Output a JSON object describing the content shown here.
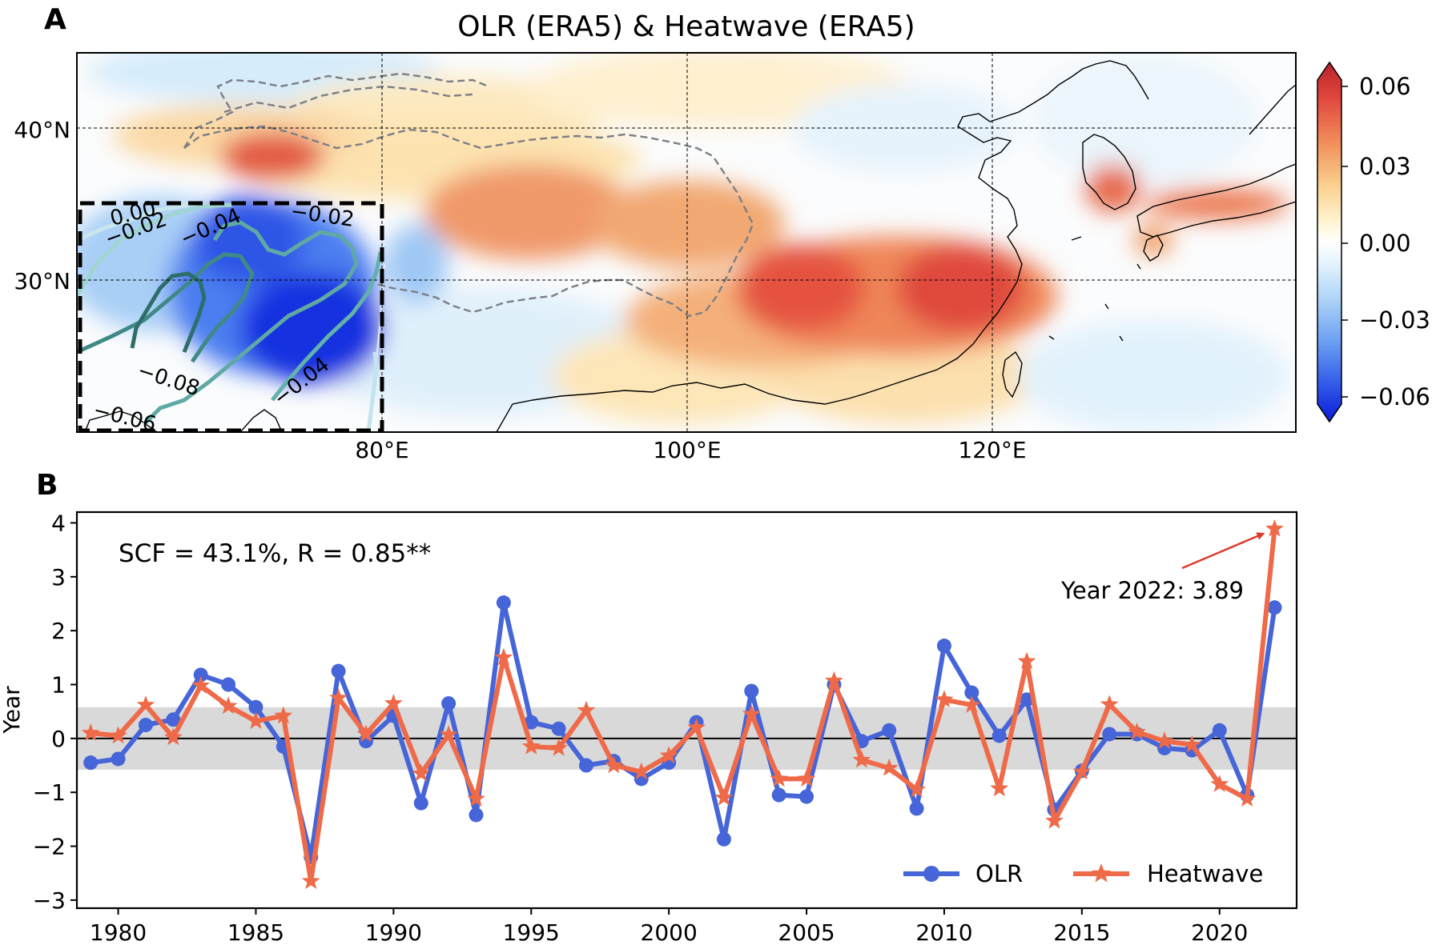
{
  "panel_a": {
    "label": "A",
    "title": "OLR (ERA5) & Heatwave (ERA5)",
    "lat_labels": [
      "40°N",
      "30°N"
    ],
    "lon_labels": [
      "80°E",
      "100°E",
      "120°E"
    ],
    "colorbar": {
      "ticks": [
        "0.06",
        "0.03",
        "0.00",
        "−0.03",
        "−0.06"
      ],
      "range": [
        -0.066,
        0.066
      ],
      "colors": [
        "#0a1bd6",
        "#1e43e6",
        "#3d6ded",
        "#5d93f0",
        "#86b6f4",
        "#aed3f8",
        "#d3ebfb",
        "#eef8fd",
        "#fff3cf",
        "#fde0a3",
        "#fac27c",
        "#f5a064",
        "#ee7c52",
        "#e65a44",
        "#d63a36",
        "#b8232b"
      ]
    },
    "contour_labels": [
      "0.00",
      "−0.02",
      "−0.04",
      "−0.02",
      "−0.08",
      "−0.04",
      "−0.06"
    ]
  },
  "panel_b": {
    "label": "B",
    "ylabel": "Year",
    "annotation": "SCF = 43.1%, R = 0.85**",
    "callout": "Year 2022: 3.89",
    "legend": [
      "OLR",
      "Heatwave"
    ],
    "colors": {
      "olr": "#4565d8",
      "heatwave": "#ee6a48",
      "arrow": "#e03a2c",
      "band": "#d9d9d9"
    }
  },
  "chart_data": {
    "type": "line",
    "x": [
      1979,
      1980,
      1981,
      1982,
      1983,
      1984,
      1985,
      1986,
      1987,
      1988,
      1989,
      1990,
      1991,
      1992,
      1993,
      1994,
      1995,
      1996,
      1997,
      1998,
      1999,
      2000,
      2001,
      2002,
      2003,
      2004,
      2005,
      2006,
      2007,
      2008,
      2009,
      2010,
      2011,
      2012,
      2013,
      2014,
      2015,
      2016,
      2017,
      2018,
      2019,
      2020,
      2021,
      2022
    ],
    "series": [
      {
        "name": "OLR",
        "values": [
          -0.45,
          -0.38,
          0.25,
          0.35,
          1.18,
          1.0,
          0.58,
          -0.15,
          -2.2,
          1.25,
          -0.05,
          0.42,
          -1.2,
          0.65,
          -1.42,
          2.52,
          0.3,
          0.18,
          -0.5,
          -0.42,
          -0.75,
          -0.45,
          0.3,
          -1.87,
          0.88,
          -1.05,
          -1.08,
          1.0,
          -0.05,
          0.15,
          -1.3,
          1.72,
          0.85,
          0.05,
          0.72,
          -1.32,
          -0.6,
          0.08,
          0.08,
          -0.18,
          -0.22,
          0.15,
          -1.05,
          2.43
        ]
      },
      {
        "name": "Heatwave",
        "values": [
          0.1,
          0.05,
          0.62,
          0.02,
          0.98,
          0.6,
          0.32,
          0.42,
          -2.65,
          0.75,
          0.08,
          0.65,
          -0.65,
          0.07,
          -1.12,
          1.5,
          -0.15,
          -0.18,
          0.52,
          -0.5,
          -0.62,
          -0.32,
          0.2,
          -1.1,
          0.45,
          -0.75,
          -0.75,
          1.07,
          -0.4,
          -0.55,
          -0.95,
          0.72,
          0.62,
          -0.93,
          1.43,
          -1.53,
          -0.62,
          0.63,
          0.12,
          -0.05,
          -0.12,
          -0.85,
          -1.12,
          3.89
        ]
      }
    ],
    "xlim": [
      1978.5,
      2022.8
    ],
    "ylim": [
      -3.15,
      4.2
    ],
    "yticks": [
      4,
      3,
      2,
      1,
      0,
      -1,
      -2,
      -3
    ],
    "ytick_labels": [
      "4",
      "3",
      "2",
      "1",
      "0",
      "−1",
      "−2",
      "−3"
    ],
    "xticks": [
      1980,
      1985,
      1990,
      1995,
      2000,
      2005,
      2010,
      2015,
      2020
    ],
    "xtick_labels": [
      "1980",
      "1985",
      "1990",
      "1995",
      "2000",
      "2005",
      "2010",
      "2015",
      "2020"
    ],
    "band": [
      -0.58,
      0.58
    ],
    "legend_position": "lower right",
    "grid": false
  }
}
